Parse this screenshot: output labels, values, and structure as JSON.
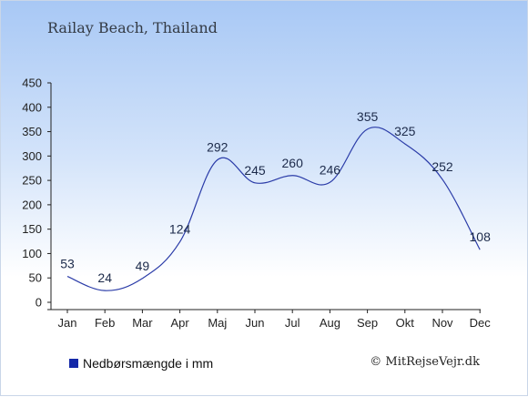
{
  "chart_data": {
    "type": "line",
    "title": "Railay Beach, Thailand",
    "categories": [
      "Jan",
      "Feb",
      "Mar",
      "Apr",
      "Maj",
      "Jun",
      "Jul",
      "Aug",
      "Sep",
      "Okt",
      "Nov",
      "Dec"
    ],
    "series": [
      {
        "name": "Nedbørsmængde i mm",
        "values": [
          53,
          24,
          49,
          124,
          292,
          245,
          260,
          246,
          355,
          325,
          252,
          108
        ],
        "color": "#1f2fa8"
      }
    ],
    "y_ticks": [
      "0",
      "50",
      "100",
      "150",
      "200",
      "250",
      "300",
      "350",
      "400",
      "450"
    ],
    "ylim": [
      0,
      450
    ],
    "grid": false,
    "legend_position": "bottom-left"
  },
  "credit": "© MitRejseVejr.dk",
  "colors": {
    "line": "#2b3ca8",
    "legend_swatch": "#1428a8",
    "axis": "#222222"
  }
}
